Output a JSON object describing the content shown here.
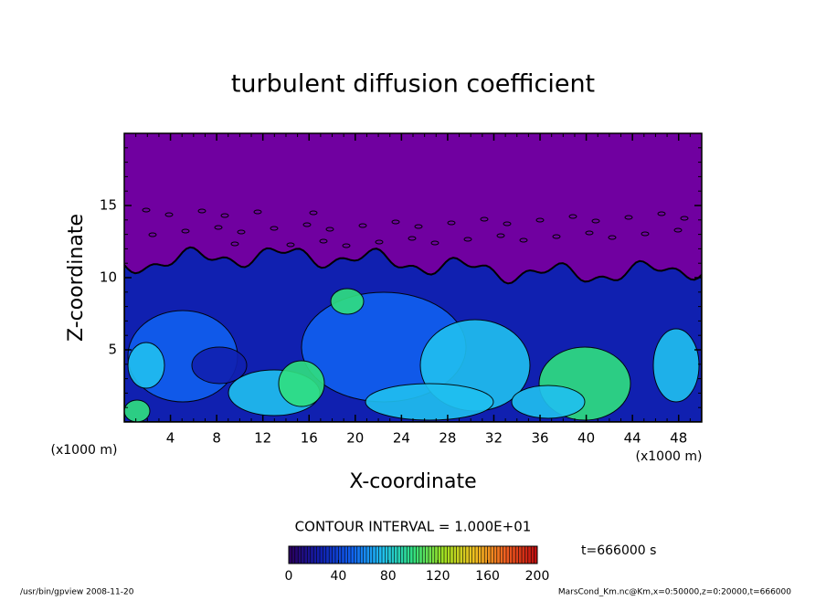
{
  "chart_data": {
    "type": "contour",
    "title": "turbulent diffusion coefficient",
    "xlabel": "X-coordinate",
    "ylabel": "Z-coordinate",
    "x_unit": "(x1000 m)",
    "y_unit": "(x1000 m)",
    "xlim": [
      0,
      50
    ],
    "xticks": [
      4,
      8,
      12,
      16,
      20,
      24,
      28,
      32,
      36,
      40,
      44,
      48
    ],
    "ylim": [
      0,
      20
    ],
    "yticks": [
      5,
      10,
      15
    ],
    "contour_interval_label": "CONTOUR INTERVAL = 1.000E+01",
    "clim": [
      0,
      200
    ],
    "cticks": [
      0,
      40,
      80,
      120,
      160,
      200
    ],
    "colors": [
      "#2a0060",
      "#1020b0",
      "#1060f0",
      "#20c0f0",
      "#30e080",
      "#a0e020",
      "#f0c020",
      "#f06020",
      "#c01010"
    ],
    "time_label": "t=666000 s",
    "footer_left": "/usr/bin/gpview   2008-11-20",
    "footer_right": "MarsCond_Km.nc@Km,x=0:50000,z=0:20000,t=666000"
  }
}
